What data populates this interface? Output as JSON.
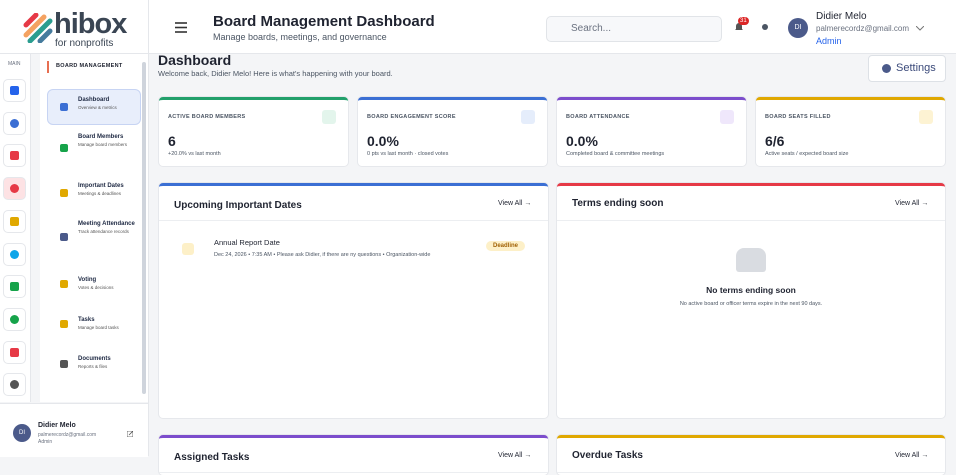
{
  "brand": {
    "name": "hibox",
    "tagline": "for nonprofits"
  },
  "header": {
    "title": "Board Management Dashboard",
    "subtitle": "Manage boards, meetings, and governance",
    "search_placeholder": "Search...",
    "notification_count": 31,
    "user": {
      "initials": "DI",
      "name": "Didier Melo",
      "email": "palmerecordz@gmail.com",
      "role": "Admin"
    }
  },
  "rail": {
    "label": "MAIN"
  },
  "sidebar": {
    "section": "BOARD MANAGEMENT",
    "items": [
      {
        "title": "Dashboard",
        "subtitle": "Overview & metrics"
      },
      {
        "title": "Board Members",
        "subtitle": "Manage board members"
      },
      {
        "title": "Important Dates",
        "subtitle": "Meetings & deadlines"
      },
      {
        "title": "Meeting Attendance",
        "subtitle": "Track attendance records"
      },
      {
        "title": "Voting",
        "subtitle": "Votes & decisions"
      },
      {
        "title": "Tasks",
        "subtitle": "Manage board tasks"
      },
      {
        "title": "Documents",
        "subtitle": "Reports & files"
      }
    ],
    "footer": {
      "initials": "DI",
      "name": "Didier Melo",
      "email": "palmerecordz@gmail.com",
      "role": "Admin"
    }
  },
  "page": {
    "title": "Dashboard",
    "welcome": "Welcome back, Didier Melo! Here is what's happening with your board.",
    "settings": "Settings"
  },
  "stats": [
    {
      "label": "ACTIVE BOARD MEMBERS",
      "value": 6,
      "note": "+20.0% vs last month"
    },
    {
      "label": "BOARD ENGAGEMENT SCORE",
      "value": "0.0%",
      "note": "0 pts vs last month · closed votes"
    },
    {
      "label": "BOARD ATTENDANCE",
      "value": "0.0%",
      "note": "Completed board & committee meetings"
    },
    {
      "label": "BOARD SEATS FILLED",
      "value": "6/6",
      "note": "Active seats / expected board size"
    }
  ],
  "panels": [
    {
      "title": "Upcoming Important Dates",
      "view_all": "View All →",
      "events": [
        {
          "title": "Annual Report Date",
          "details": "Dec 24, 2026 • 7:35 AM • Please ask Didier, if there are ny questions • Organization-wide",
          "tag": "Deadline"
        }
      ]
    },
    {
      "title": "Terms ending soon",
      "view_all": "View All →",
      "empty_title": "No terms ending soon",
      "empty_text": "No active board or officer terms expire in the next 90 days."
    },
    {
      "title": "Assigned Tasks",
      "view_all": "View All →"
    },
    {
      "title": "Overdue Tasks",
      "view_all": "View All →"
    }
  ]
}
